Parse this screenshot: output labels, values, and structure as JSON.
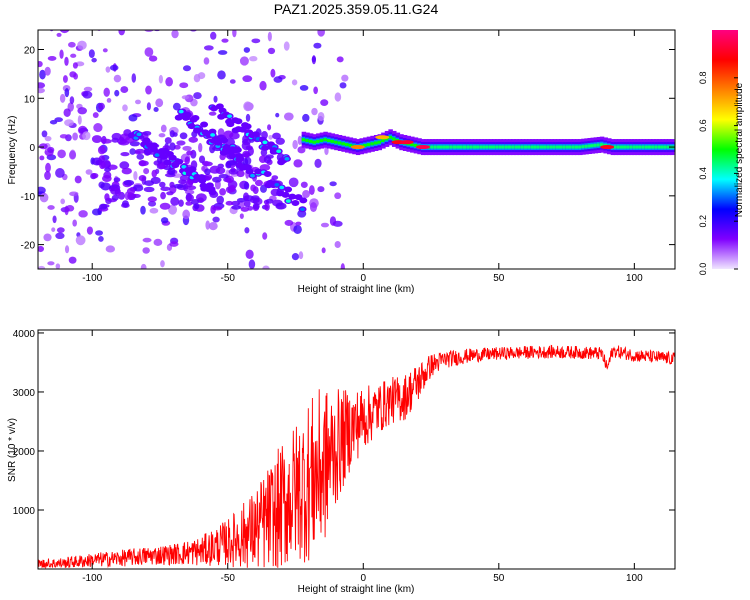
{
  "title": "PAZ1.2025.359.05.11.G24",
  "chart_data": [
    {
      "type": "heatmap",
      "xlabel": "Height of straight line (km)",
      "ylabel": "Frequency (Hz)",
      "xlim": [
        -120,
        115
      ],
      "ylim": [
        -25,
        24
      ],
      "xticks": [
        -100,
        -50,
        0,
        50,
        100
      ],
      "yticks": [
        -20,
        -10,
        0,
        10,
        20
      ],
      "colorbar": {
        "label": "Normalized spectral amplitude",
        "range": [
          0,
          1
        ],
        "ticks": [
          0.0,
          0.2,
          0.4,
          0.6,
          0.8
        ],
        "palette": [
          "#f0e6ff",
          "#8000ff",
          "#0000ff",
          "#00ffff",
          "#00ff00",
          "#ffff00",
          "#ff8000",
          "#ff0000",
          "#ff0080"
        ]
      },
      "ridge": {
        "x": [
          -22,
          -18,
          -14,
          -10,
          -6,
          -2,
          2,
          6,
          10,
          14,
          18,
          22,
          30,
          40,
          60,
          80,
          88,
          92,
          100,
          115
        ],
        "frequency": [
          1.5,
          1,
          1.5,
          1,
          0.5,
          0,
          0.5,
          1,
          2,
          1,
          0.5,
          0,
          0,
          0,
          0,
          0,
          0.5,
          0,
          0,
          0
        ]
      },
      "diagonal_traces": [
        {
          "x_start": -60,
          "f_start": 3,
          "x_end": -22,
          "f_end": -12
        },
        {
          "x_start": -55,
          "f_start": 8,
          "x_end": -28,
          "f_end": -3
        },
        {
          "x_start": -85,
          "f_start": 3,
          "x_end": -55,
          "f_end": -9
        },
        {
          "x_start": -68,
          "f_start": 7,
          "x_end": -45,
          "f_end": -2
        }
      ]
    },
    {
      "type": "line",
      "xlabel": "Height of straight line (km)",
      "ylabel": "SNR (10 * v/v)",
      "xlim": [
        -120,
        115
      ],
      "ylim": [
        0,
        4050
      ],
      "xticks": [
        -100,
        -50,
        0,
        50,
        100
      ],
      "yticks": [
        1000,
        2000,
        3000,
        4000
      ],
      "series": [
        {
          "color": "#ff0000",
          "x": [
            -120,
            -110,
            -100,
            -90,
            -80,
            -70,
            -60,
            -50,
            -40,
            -35,
            -30,
            -25,
            -20,
            -15,
            -10,
            -5,
            0,
            5,
            10,
            15,
            20,
            25,
            30,
            40,
            50,
            60,
            70,
            80,
            88,
            90,
            92,
            100,
            110,
            115
          ],
          "y": [
            80,
            100,
            150,
            180,
            220,
            250,
            300,
            450,
            650,
            850,
            1050,
            1300,
            1500,
            1700,
            2050,
            2350,
            2550,
            2700,
            2850,
            2900,
            3150,
            3450,
            3550,
            3620,
            3650,
            3670,
            3680,
            3670,
            3650,
            3400,
            3700,
            3620,
            3580,
            3560
          ],
          "noise": [
            90,
            100,
            120,
            140,
            160,
            180,
            250,
            400,
            700,
            900,
            1100,
            1200,
            1400,
            1400,
            1000,
            700,
            550,
            450,
            400,
            400,
            350,
            200,
            150,
            120,
            110,
            110,
            110,
            110,
            110,
            110,
            110,
            110,
            110,
            110
          ]
        }
      ]
    }
  ]
}
